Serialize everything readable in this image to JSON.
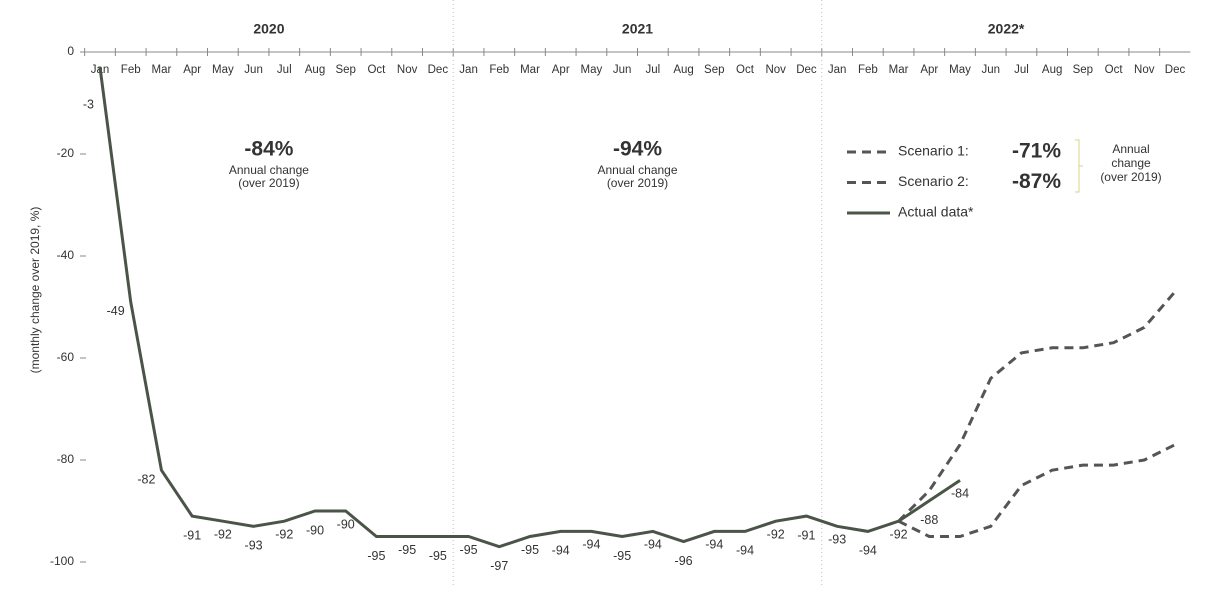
{
  "chart_data": {
    "type": "line",
    "y_label": "(monthly change over 2019, %)",
    "categories": [
      "Jan",
      "Feb",
      "Mar",
      "Apr",
      "May",
      "Jun",
      "Jul",
      "Aug",
      "Sep",
      "Oct",
      "Nov",
      "Dec",
      "Jan",
      "Feb",
      "Mar",
      "Apr",
      "May",
      "Jun",
      "Jul",
      "Aug",
      "Sep",
      "Oct",
      "Nov",
      "Dec",
      "Jan",
      "Feb",
      "Mar",
      "Apr",
      "May",
      "Jun",
      "Jul",
      "Aug",
      "Sep",
      "Oct",
      "Nov",
      "Dec"
    ],
    "ylim": [
      -100,
      0
    ],
    "yticks": [
      0,
      -20,
      -40,
      -60,
      -80,
      -100
    ],
    "years": [
      {
        "label": "2020",
        "annual_change": "-84%",
        "note": [
          "Annual change",
          "(over 2019)"
        ]
      },
      {
        "label": "2021",
        "annual_change": "-94%",
        "note": [
          "Annual change",
          "(over 2019)"
        ]
      },
      {
        "label": "2022*"
      }
    ],
    "series": [
      {
        "name": "Scenario 1:",
        "annual_change": "-71%",
        "color": "#555555",
        "style": "dashed",
        "values": [
          null,
          null,
          null,
          null,
          null,
          null,
          null,
          null,
          null,
          null,
          null,
          null,
          null,
          null,
          null,
          null,
          null,
          null,
          null,
          null,
          null,
          null,
          null,
          null,
          null,
          null,
          -92,
          -86,
          -77,
          -64,
          -59,
          -58,
          -58,
          -57,
          -54,
          -47
        ]
      },
      {
        "name": "Scenario 2:",
        "annual_change": "-87%",
        "color": "#555555",
        "style": "dashed",
        "values": [
          null,
          null,
          null,
          null,
          null,
          null,
          null,
          null,
          null,
          null,
          null,
          null,
          null,
          null,
          null,
          null,
          null,
          null,
          null,
          null,
          null,
          null,
          null,
          null,
          null,
          null,
          -92,
          -95,
          -95,
          -93,
          -85,
          -82,
          -81,
          -81,
          -80,
          -77
        ]
      },
      {
        "name": "Actual data*",
        "color": "#4a5548",
        "style": "solid",
        "labels": true,
        "values": [
          -3,
          -49,
          -82,
          -91,
          -92,
          -93,
          -92,
          -90,
          -90,
          -95,
          -95,
          -95,
          -95,
          -97,
          -95,
          -94,
          -94,
          -95,
          -94,
          -96,
          -94,
          -94,
          -92,
          -91,
          -93,
          -94,
          -92,
          -88,
          -84,
          null,
          null,
          null,
          null,
          null,
          null,
          null
        ]
      }
    ],
    "legend_note": [
      "Annual",
      "change",
      "(over 2019)"
    ]
  }
}
